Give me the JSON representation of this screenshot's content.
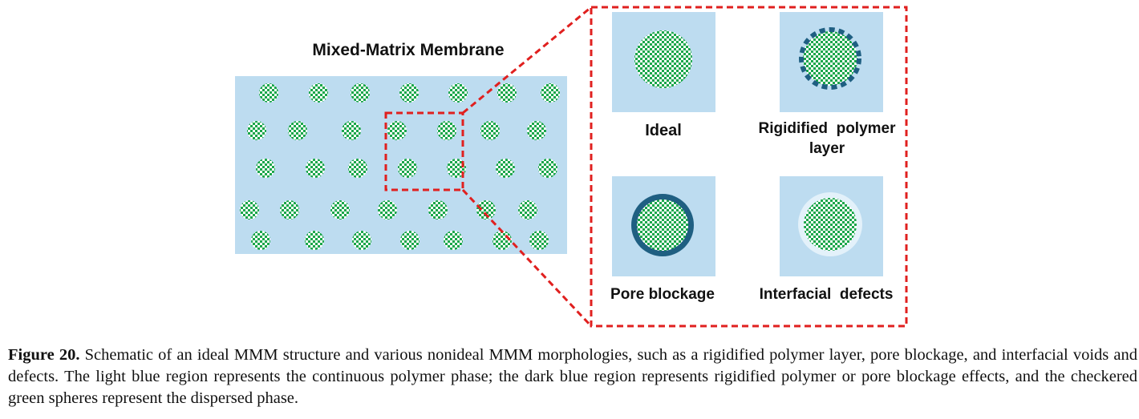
{
  "diagram": {
    "title": "Mixed-Matrix Membrane",
    "panels": {
      "ideal": "Ideal",
      "rigidified_line1": "Rigidified  polymer",
      "rigidified_line2": "layer",
      "pore_blockage": "Pore blockage",
      "interfacial": "Interfacial  defects"
    },
    "colors": {
      "polymer": "#bddcf0",
      "particle_green": "#1aa64a",
      "rigid_blue": "#1f5f82",
      "void": "#e3f1fa",
      "callout_red": "#e0201f"
    }
  },
  "caption": {
    "label": "Figure 20.",
    "text": " Schematic of an ideal MMM structure and various nonideal MMM morphologies, such as a rigidified polymer layer, pore blockage, and interfacial voids and defects. The light blue region represents the continuous polymer phase; the dark blue region represents rigidified polymer or pore blockage effects, and the checkered green spheres represent the dispersed phase."
  }
}
